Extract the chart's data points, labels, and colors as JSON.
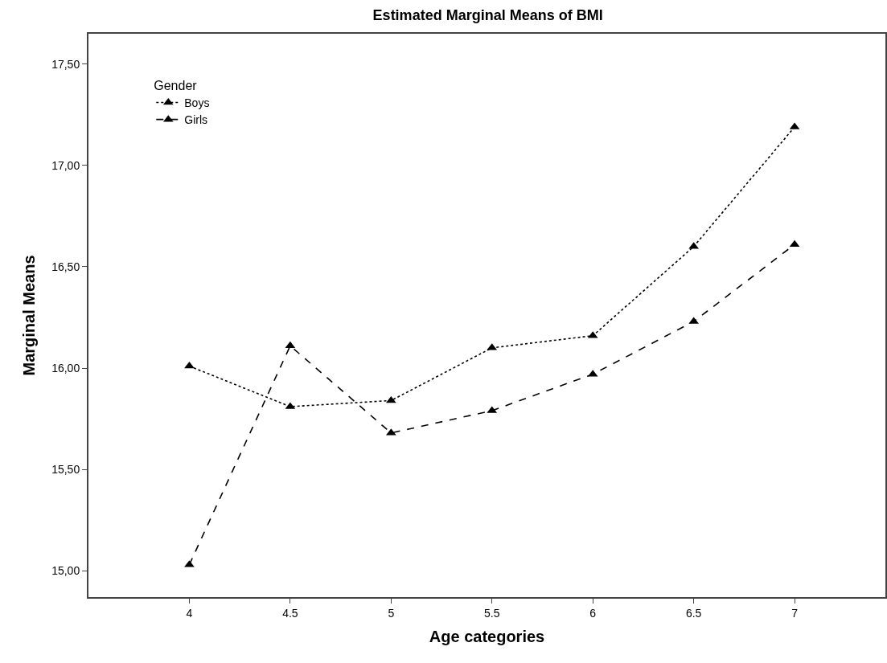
{
  "chart_data": {
    "type": "line",
    "title": "Estimated Marginal Means of BMI",
    "xlabel": "Age categories",
    "ylabel": "Marginal Means",
    "legend_title": "Gender",
    "categories": [
      "4",
      "4.5",
      "5",
      "5.5",
      "6",
      "6.5",
      "7"
    ],
    "series": [
      {
        "name": "Boys",
        "color": "#000000",
        "line_style": "dotted",
        "values": [
          16.01,
          15.81,
          15.84,
          16.1,
          16.16,
          16.6,
          17.19
        ]
      },
      {
        "name": "Girls",
        "color": "#000000",
        "line_style": "dashed",
        "values": [
          15.03,
          16.11,
          15.68,
          15.79,
          15.97,
          16.23,
          16.61
        ]
      }
    ],
    "ylim": [
      14.87,
      17.65
    ],
    "yticks": [
      {
        "value": 15,
        "label": "15,00"
      },
      {
        "value": 15.5,
        "label": "15,50"
      },
      {
        "value": 16,
        "label": "16,00"
      },
      {
        "value": 16.5,
        "label": "16,50"
      },
      {
        "value": 17,
        "label": "17,00"
      },
      {
        "value": 17.5,
        "label": "17,50"
      }
    ],
    "marker": "triangle",
    "legend": "top left"
  }
}
